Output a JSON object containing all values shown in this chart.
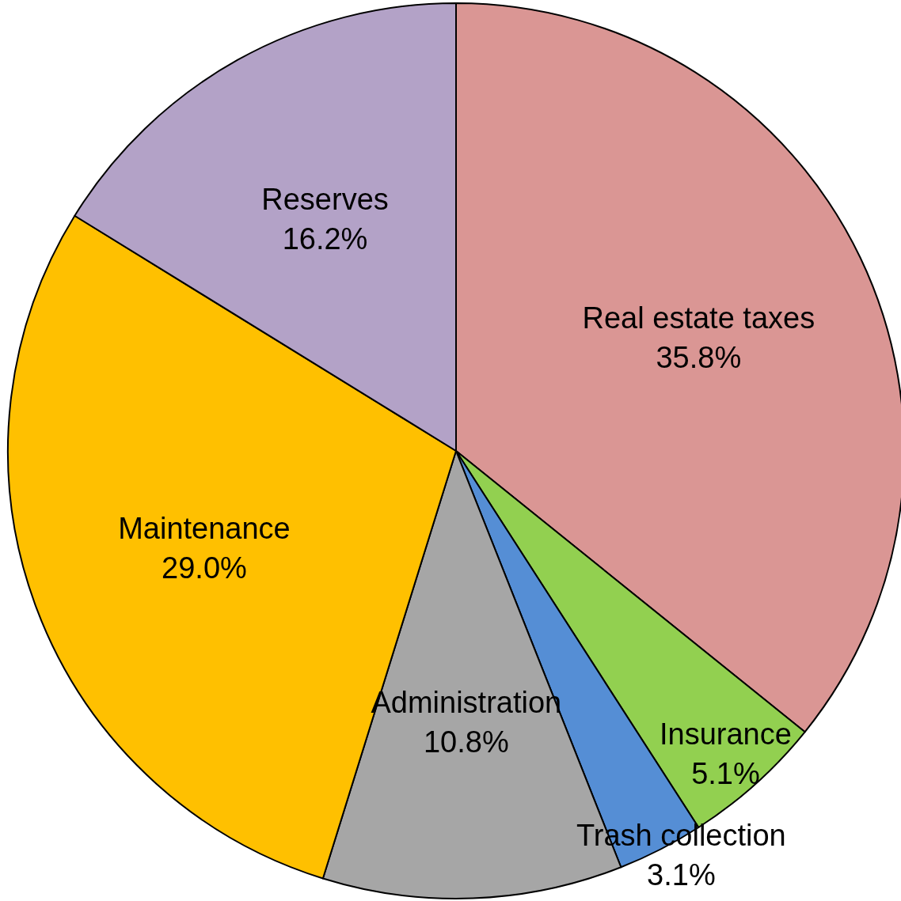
{
  "chart_data": {
    "type": "pie",
    "categories": [
      "Real estate taxes",
      "Insurance",
      "Trash collection",
      "Administration",
      "Maintenance",
      "Reserves"
    ],
    "values": [
      35.8,
      5.1,
      3.1,
      10.8,
      29.0,
      16.2
    ],
    "value_labels": [
      "35.8%",
      "5.1%",
      "3.1%",
      "10.8%",
      "29.0%",
      "16.2%"
    ],
    "colors": [
      "#da9694",
      "#92d050",
      "#558ed5",
      "#a6a6a6",
      "#ffc000",
      "#b3a2c7"
    ]
  }
}
